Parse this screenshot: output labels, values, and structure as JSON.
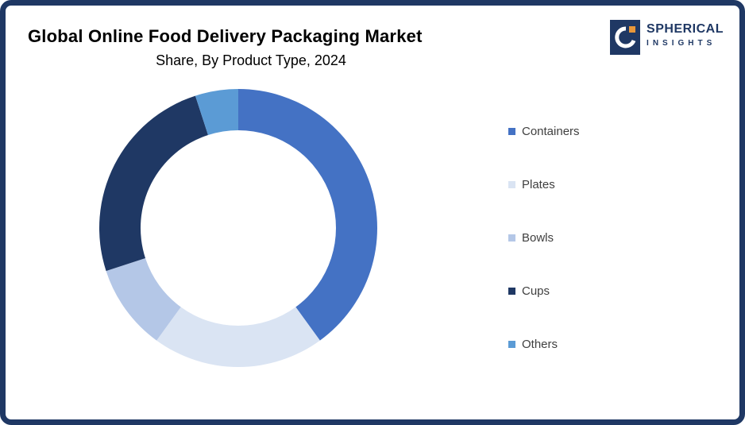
{
  "brand": {
    "name_line1": "SPHERICAL",
    "name_line2": "INSIGHTS",
    "icon_bg_color": "#1F3864",
    "icon_accent_color": "#E8973A"
  },
  "chart_data": {
    "type": "pie",
    "donut": true,
    "title": "Global Online Food Delivery Packaging Market",
    "subtitle": "Share, By Product Type, 2024",
    "start_angle_deg": -90,
    "direction": "clockwise",
    "legend_position": "right",
    "segments": [
      {
        "label": "Containers",
        "value": 40,
        "color": "#4472C4"
      },
      {
        "label": "Plates",
        "value": 20,
        "color": "#DAE4F3"
      },
      {
        "label": "Bowls",
        "value": 10,
        "color": "#B4C7E7"
      },
      {
        "label": "Cups",
        "value": 25,
        "color": "#1F3864"
      },
      {
        "label": "Others",
        "value": 5,
        "color": "#5B9BD5"
      }
    ]
  }
}
